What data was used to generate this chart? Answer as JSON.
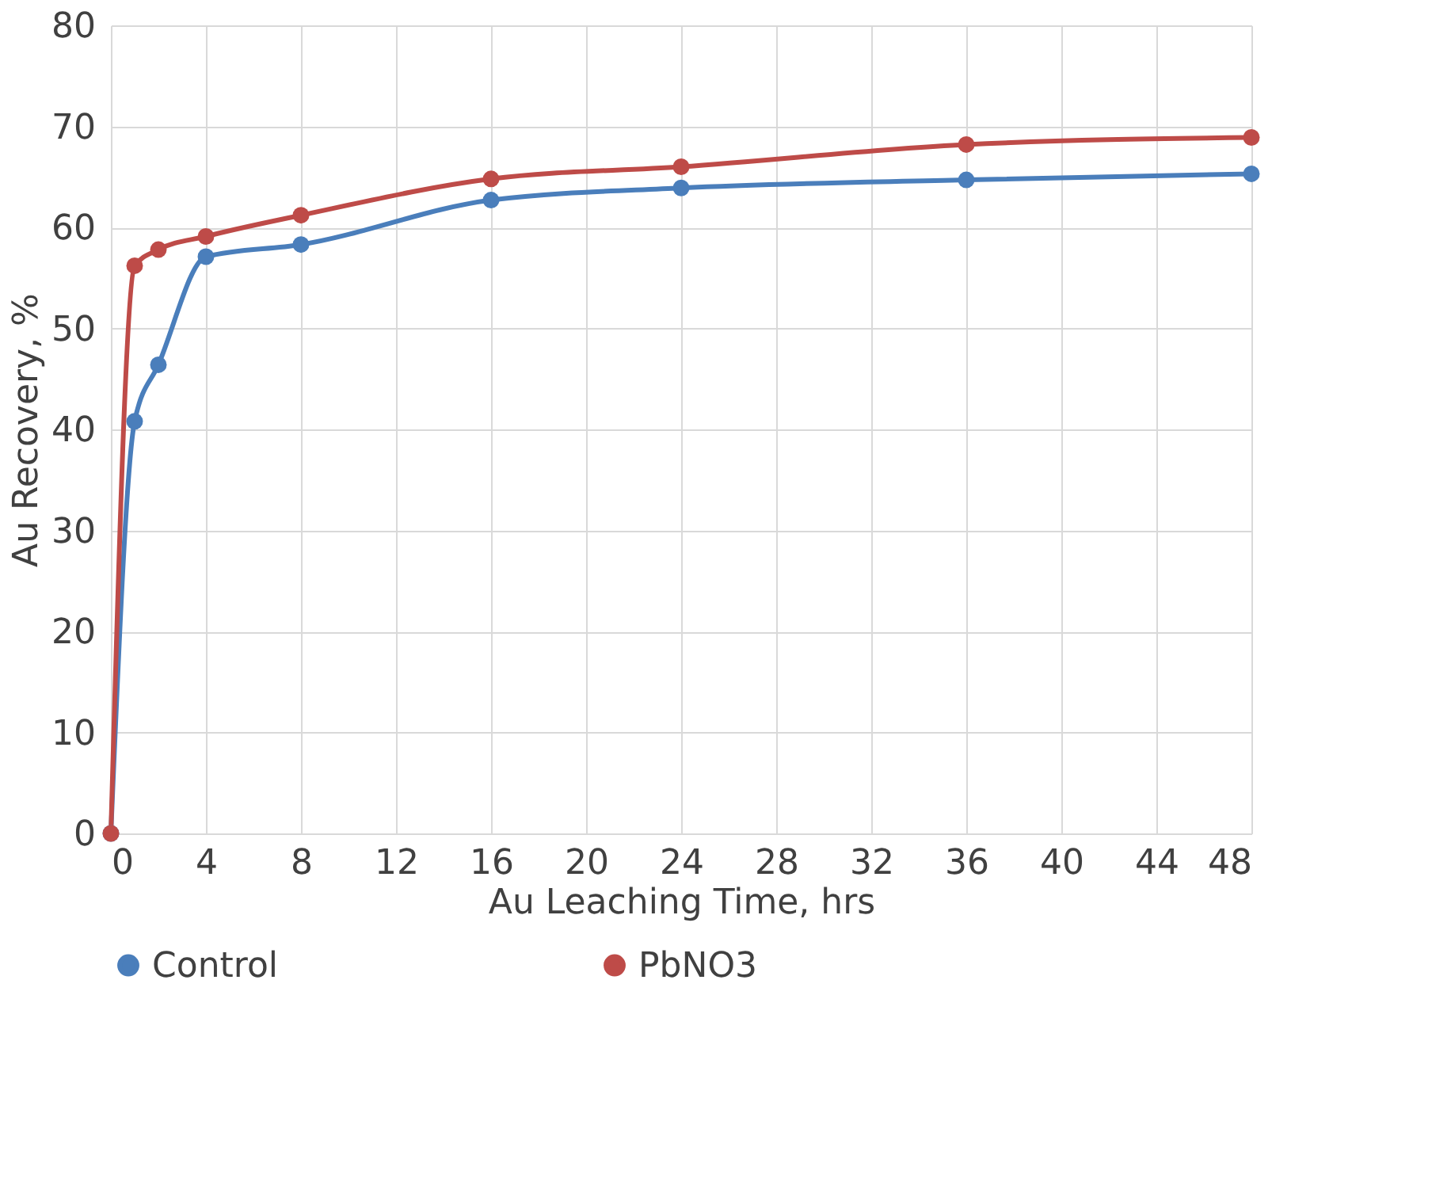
{
  "chart_data": {
    "type": "line",
    "xlabel": "Au Leaching Time, hrs",
    "ylabel": "Au Recovery, %",
    "x": [
      0,
      1,
      2,
      4,
      8,
      16,
      24,
      36,
      48
    ],
    "series": [
      {
        "name": "Control",
        "color": "#4a7ebb",
        "values": [
          0,
          40.8,
          46.4,
          57.1,
          58.3,
          62.7,
          63.9,
          64.7,
          65.3
        ]
      },
      {
        "name": "PbNO3",
        "color": "#be4b48",
        "values": [
          0,
          56.2,
          57.8,
          59.1,
          61.2,
          64.8,
          66.0,
          68.2,
          68.9
        ]
      }
    ],
    "xlim": [
      0,
      48
    ],
    "xticks": [
      0,
      4,
      8,
      12,
      16,
      20,
      24,
      28,
      32,
      36,
      40,
      44,
      48
    ],
    "ylim": [
      0,
      80
    ],
    "yticks": [
      0,
      10,
      20,
      30,
      40,
      50,
      60,
      70,
      80
    ],
    "grid": true,
    "legend": "bottom",
    "marker": "circle",
    "line_style": "solid"
  }
}
